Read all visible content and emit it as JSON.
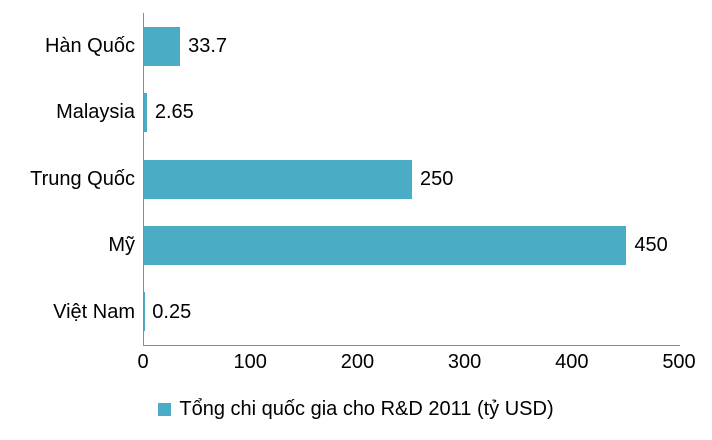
{
  "chart_data": {
    "type": "bar",
    "orientation": "horizontal",
    "title": "",
    "categories": [
      "Hàn Quốc",
      "Malaysia",
      "Trung Quốc",
      "Mỹ",
      "Việt Nam"
    ],
    "values": [
      33.7,
      2.65,
      250,
      450,
      0.25
    ],
    "value_labels": [
      "33.7",
      "2.65",
      "250",
      "450",
      "0.25"
    ],
    "xlabel": "",
    "ylabel": "",
    "xlim": [
      0,
      500
    ],
    "xticks": [
      0,
      100,
      200,
      300,
      400,
      500
    ],
    "grid": false,
    "legend": {
      "position": "bottom",
      "label": "Tổng chi quốc gia cho R&D 2011 (tỷ USD)"
    },
    "colors": {
      "bar": "#4BACC6",
      "axis": "#8C8C8C",
      "text": "#000000",
      "background": "#FFFFFF"
    }
  }
}
